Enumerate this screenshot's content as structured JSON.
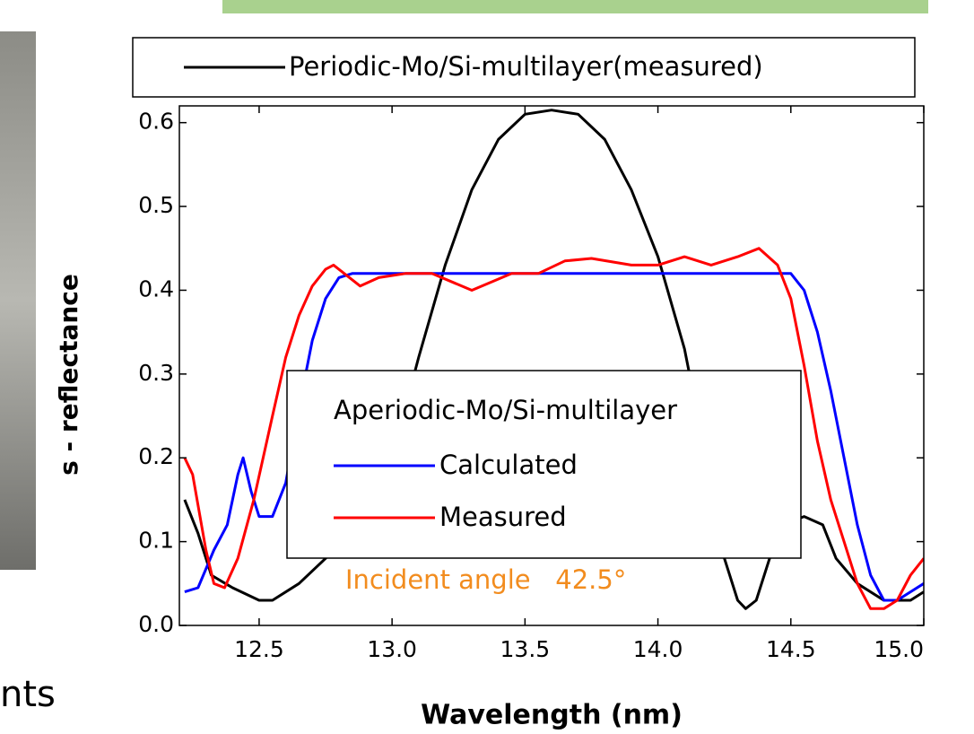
{
  "chart_data": {
    "type": "line",
    "x_label": "Wavelength (nm)",
    "y_label": "s - reflectance",
    "xlim": [
      12.2,
      15.0
    ],
    "ylim": [
      0,
      0.62
    ],
    "xticks": [
      12.5,
      {
        "value": 13,
        "label": "13.0"
      },
      13.5,
      {
        "value": 14,
        "label": "14.0"
      },
      14.5,
      {
        "value": 15,
        "label": "15.0"
      }
    ],
    "yticks": [
      {
        "value": 0,
        "label": "0.0"
      },
      0.1,
      0.2,
      0.3,
      0.4,
      0.5,
      0.6
    ],
    "legend_title": "Aperiodic-Mo/Si-multilayer",
    "annotation": "Incident angle   42.5°",
    "partial_text": "nts",
    "series": [
      {
        "name": "Periodic-Mo/Si-multilayer(measured)",
        "color": "#000000",
        "x": [
          12.22,
          12.27,
          12.32,
          12.4,
          12.5,
          12.55,
          12.65,
          12.75,
          12.9,
          13.0,
          13.1,
          13.2,
          13.3,
          13.4,
          13.5,
          13.6,
          13.7,
          13.8,
          13.9,
          14.0,
          14.1,
          14.2,
          14.25,
          14.3,
          14.33,
          14.37,
          14.42,
          14.47,
          14.55,
          14.62,
          14.67,
          14.75,
          14.85,
          14.95,
          15.0
        ],
        "values": [
          0.15,
          0.11,
          0.06,
          0.045,
          0.03,
          0.03,
          0.05,
          0.08,
          0.13,
          0.2,
          0.32,
          0.43,
          0.52,
          0.58,
          0.61,
          0.615,
          0.61,
          0.58,
          0.52,
          0.44,
          0.33,
          0.17,
          0.08,
          0.03,
          0.02,
          0.03,
          0.08,
          0.12,
          0.13,
          0.12,
          0.08,
          0.05,
          0.03,
          0.03,
          0.04
        ]
      },
      {
        "name": "Calculated",
        "color": "#0000ff",
        "x": [
          12.22,
          12.27,
          12.33,
          12.38,
          12.42,
          12.44,
          12.47,
          12.5,
          12.55,
          12.6,
          12.65,
          12.7,
          12.75,
          12.8,
          12.85,
          13.5,
          14.5,
          14.55,
          14.6,
          14.65,
          14.7,
          14.75,
          14.8,
          14.85,
          14.9,
          14.95,
          15.0
        ],
        "values": [
          0.04,
          0.045,
          0.09,
          0.12,
          0.18,
          0.2,
          0.16,
          0.13,
          0.13,
          0.17,
          0.26,
          0.34,
          0.39,
          0.415,
          0.42,
          0.42,
          0.42,
          0.4,
          0.35,
          0.28,
          0.2,
          0.12,
          0.06,
          0.03,
          0.03,
          0.04,
          0.05
        ]
      },
      {
        "name": "Measured",
        "color": "#ff0000",
        "x": [
          12.22,
          12.25,
          12.3,
          12.33,
          12.37,
          12.42,
          12.48,
          12.55,
          12.6,
          12.65,
          12.7,
          12.75,
          12.78,
          12.82,
          12.88,
          12.95,
          13.05,
          13.15,
          13.3,
          13.45,
          13.55,
          13.65,
          13.75,
          13.9,
          14.0,
          14.1,
          14.2,
          14.3,
          14.38,
          14.45,
          14.5,
          14.55,
          14.6,
          14.65,
          14.7,
          14.75,
          14.8,
          14.85,
          14.9,
          14.95,
          15.0
        ],
        "values": [
          0.2,
          0.18,
          0.09,
          0.05,
          0.045,
          0.08,
          0.15,
          0.25,
          0.32,
          0.37,
          0.405,
          0.425,
          0.43,
          0.42,
          0.405,
          0.415,
          0.42,
          0.42,
          0.4,
          0.42,
          0.42,
          0.435,
          0.438,
          0.43,
          0.43,
          0.44,
          0.43,
          0.44,
          0.45,
          0.43,
          0.39,
          0.31,
          0.22,
          0.15,
          0.1,
          0.05,
          0.02,
          0.02,
          0.03,
          0.06,
          0.08
        ]
      }
    ]
  }
}
